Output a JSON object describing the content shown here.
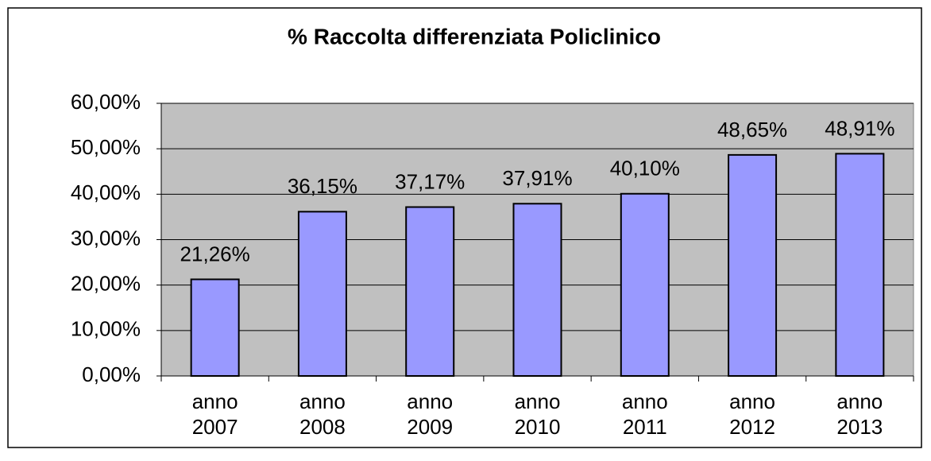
{
  "chart_data": {
    "type": "bar",
    "title": "% Raccolta differenziata  Policlinico",
    "categories": [
      "anno 2007",
      "anno 2008",
      "anno 2009",
      "anno 2010",
      "anno 2011",
      "anno 2012",
      "anno 2013"
    ],
    "values": [
      21.26,
      36.15,
      37.17,
      37.91,
      40.1,
      48.65,
      48.91
    ],
    "value_labels": [
      "21,26%",
      "36,15%",
      "37,17%",
      "37,91%",
      "40,10%",
      "48,65%",
      "48,91%"
    ],
    "color": "#9999ff",
    "ylim": [
      0,
      60
    ],
    "yticks": [
      {
        "value": 0,
        "label": "0,00%"
      },
      {
        "value": 10,
        "label": "10,00%"
      },
      {
        "value": 20,
        "label": "20,00%"
      },
      {
        "value": 30,
        "label": "30,00%"
      },
      {
        "value": 40,
        "label": "40,00%"
      },
      {
        "value": 50,
        "label": "50,00%"
      },
      {
        "value": 60,
        "label": "60,00%"
      }
    ],
    "grid": true
  }
}
